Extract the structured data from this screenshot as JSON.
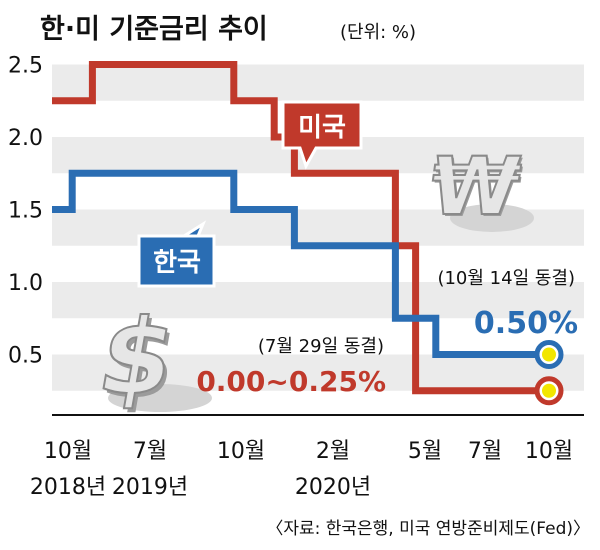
{
  "colors": {
    "korea": "#2a6db3",
    "us": "#c0392b",
    "band": "#ebebeb",
    "marker": "#f2e600",
    "text": "#222222"
  },
  "header": {
    "title": "한·미 기준금리 추이",
    "unit": "(단위: %)"
  },
  "source": "〈자료: 한국은행, 미국 연방준비제도(Fed)〉",
  "annotations": {
    "korea_label": "한국",
    "us_label": "미국",
    "korea_note": "(10월 14일 동결)",
    "korea_value": "0.50%",
    "us_note": "(7월 29일 동결)",
    "us_value": "0.00~0.25%"
  },
  "icons": [
    "won-sign-icon",
    "dollar-sign-icon"
  ],
  "chart_data": {
    "type": "line",
    "step": true,
    "title": "한·미 기준금리 추이",
    "ylabel": "",
    "xlabel": "",
    "ylim": [
      0,
      2.75
    ],
    "yticks": [
      "0.5",
      "1.0",
      "1.5",
      "2.0",
      "2.5"
    ],
    "xticks": [
      {
        "month": "10월",
        "year": "2018년"
      },
      {
        "month": "7월",
        "year": "2019년"
      },
      {
        "month": "10월",
        "year": ""
      },
      {
        "month": "2월",
        "year": "2020년"
      },
      {
        "month": "5월",
        "year": ""
      },
      {
        "month": "7월",
        "year": ""
      },
      {
        "month": "10월",
        "year": ""
      }
    ],
    "series": [
      {
        "name": "미국",
        "color": "#c0392b",
        "points": [
          [
            "2018-10",
            2.25
          ],
          [
            "2018-12",
            2.5
          ],
          [
            "2019-07",
            2.25
          ],
          [
            "2019-09",
            2.0
          ],
          [
            "2019-10",
            1.75
          ],
          [
            "2020-03",
            1.25
          ],
          [
            "2020-04",
            0.25
          ],
          [
            "2020-10",
            0.25
          ]
        ]
      },
      {
        "name": "한국",
        "color": "#2a6db3",
        "points": [
          [
            "2018-10",
            1.5
          ],
          [
            "2018-11",
            1.75
          ],
          [
            "2019-07",
            1.5
          ],
          [
            "2019-10",
            1.25
          ],
          [
            "2020-03",
            0.75
          ],
          [
            "2020-05",
            0.5
          ],
          [
            "2020-10",
            0.5
          ]
        ]
      }
    ]
  }
}
